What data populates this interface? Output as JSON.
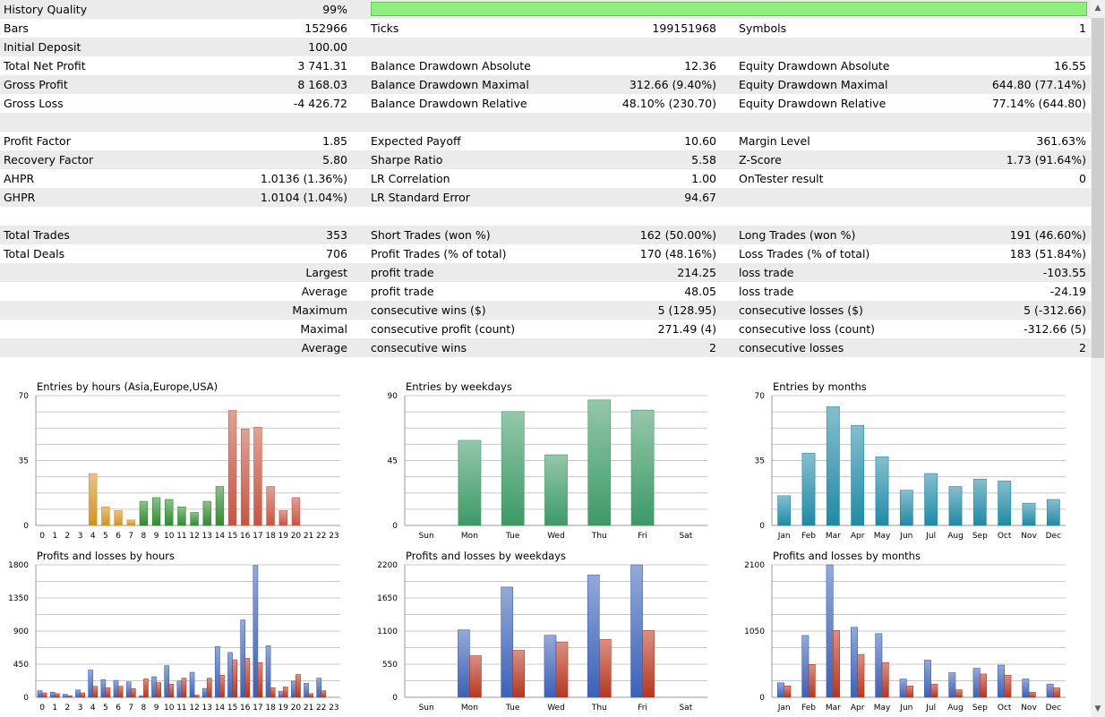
{
  "report": {
    "rows": [
      {
        "c1": "History Quality",
        "v1": "99%",
        "quality_bar": 0.99
      },
      {
        "c1": "Bars",
        "v1": "152966",
        "c2": "Ticks",
        "v2": "199151968",
        "c3": "Symbols",
        "v3": "1"
      },
      {
        "c1": "Initial Deposit",
        "v1": "100.00"
      },
      {
        "c1": "Total Net Profit",
        "v1": "3 741.31",
        "c2": "Balance Drawdown Absolute",
        "v2": "12.36",
        "c3": "Equity Drawdown Absolute",
        "v3": "16.55"
      },
      {
        "c1": "Gross Profit",
        "v1": "8 168.03",
        "c2": "Balance Drawdown Maximal",
        "v2": "312.66 (9.40%)",
        "c3": "Equity Drawdown Maximal",
        "v3": "644.80 (77.14%)"
      },
      {
        "c1": "Gross Loss",
        "v1": "-4 426.72",
        "c2": "Balance Drawdown Relative",
        "v2": "48.10% (230.70)",
        "c3": "Equity Drawdown Relative",
        "v3": "77.14% (644.80)"
      },
      {},
      {
        "c1": "Profit Factor",
        "v1": "1.85",
        "c2": "Expected Payoff",
        "v2": "10.60",
        "c3": "Margin Level",
        "v3": "361.63%"
      },
      {
        "c1": "Recovery Factor",
        "v1": "5.80",
        "c2": "Sharpe Ratio",
        "v2": "5.58",
        "c3": "Z-Score",
        "v3": "1.73 (91.64%)"
      },
      {
        "c1": "AHPR",
        "v1": "1.0136 (1.36%)",
        "c2": "LR Correlation",
        "v2": "1.00",
        "c3": "OnTester result",
        "v3": "0"
      },
      {
        "c1": "GHPR",
        "v1": "1.0104 (1.04%)",
        "c2": "LR Standard Error",
        "v2": "94.67"
      },
      {},
      {
        "c1": "Total Trades",
        "v1": "353",
        "c2": "Short Trades (won %)",
        "v2": "162 (50.00%)",
        "c3": "Long Trades (won %)",
        "v3": "191 (46.60%)"
      },
      {
        "c1": "Total Deals",
        "v1": "706",
        "c2": "Profit Trades (% of total)",
        "v2": "170 (48.16%)",
        "c3": "Loss Trades (% of total)",
        "v3": "183 (51.84%)"
      },
      {
        "lab1": "Largest",
        "c2": "profit trade",
        "v2": "214.25",
        "c3": "loss trade",
        "v3": "-103.55"
      },
      {
        "lab1": "Average",
        "c2": "profit trade",
        "v2": "48.05",
        "c3": "loss trade",
        "v3": "-24.19"
      },
      {
        "lab1": "Maximum",
        "c2": "consecutive wins ($)",
        "v2": "5 (128.95)",
        "c3": "consecutive losses ($)",
        "v3": "5 (-312.66)"
      },
      {
        "lab1": "Maximal",
        "c2": "consecutive profit (count)",
        "v2": "271.49 (4)",
        "c3": "consecutive loss (count)",
        "v3": "-312.66 (5)"
      },
      {
        "lab1": "Average",
        "c2": "consecutive wins",
        "v2": "2",
        "c3": "consecutive losses",
        "v3": "2"
      },
      {}
    ]
  },
  "colors": {
    "row_alt": "#ebebeb",
    "quality_bar": "#8ef07c",
    "asia": "#d4921e",
    "europe": "#2f8a2f",
    "usa": "#c95440",
    "weekdays": "#3c9a66",
    "months": "#1f8aa6",
    "profit": "#3a62b8",
    "loss": "#b8361e",
    "grid": "#c8c8c8"
  },
  "scrollbar": {
    "up_icon": "chevron-up-icon",
    "down_icon": "chevron-down-icon"
  },
  "chart_data": [
    {
      "type": "bar",
      "title": "Entries by hours (Asia,Europe,USA)",
      "categories": [
        "0",
        "1",
        "2",
        "3",
        "4",
        "5",
        "6",
        "7",
        "8",
        "9",
        "10",
        "11",
        "12",
        "13",
        "14",
        "15",
        "16",
        "17",
        "18",
        "19",
        "20",
        "21",
        "22",
        "23"
      ],
      "values": [
        0,
        0,
        0,
        0,
        28,
        10,
        8,
        3,
        13,
        15,
        14,
        10,
        7,
        13,
        21,
        62,
        52,
        53,
        21,
        8,
        15,
        0,
        0,
        0
      ],
      "color_groups": [
        {
          "from": 0,
          "to": 7,
          "color": "asia"
        },
        {
          "from": 8,
          "to": 14,
          "color": "europe"
        },
        {
          "from": 15,
          "to": 23,
          "color": "usa"
        }
      ],
      "yticks": [
        0,
        35,
        70
      ],
      "ylim": [
        0,
        70
      ]
    },
    {
      "type": "bar",
      "title": "Entries by weekdays",
      "categories": [
        "Sun",
        "Mon",
        "Tue",
        "Wed",
        "Thu",
        "Fri",
        "Sat"
      ],
      "values": [
        0,
        59,
        79,
        49,
        87,
        80,
        0
      ],
      "color": "weekdays",
      "yticks": [
        0,
        45,
        90
      ],
      "ylim": [
        0,
        90
      ]
    },
    {
      "type": "bar",
      "title": "Entries by months",
      "categories": [
        "Jan",
        "Feb",
        "Mar",
        "Apr",
        "May",
        "Jun",
        "Jul",
        "Aug",
        "Sep",
        "Oct",
        "Nov",
        "Dec"
      ],
      "values": [
        16,
        39,
        64,
        54,
        37,
        19,
        28,
        21,
        25,
        24,
        12,
        14
      ],
      "color": "months",
      "yticks": [
        0,
        35,
        70
      ],
      "ylim": [
        0,
        70
      ]
    },
    {
      "type": "bar",
      "title": "Profits and losses by hours",
      "categories": [
        "0",
        "1",
        "2",
        "3",
        "4",
        "5",
        "6",
        "7",
        "8",
        "9",
        "10",
        "11",
        "12",
        "13",
        "14",
        "15",
        "16",
        "17",
        "18",
        "19",
        "20",
        "21",
        "22",
        "23"
      ],
      "series": [
        {
          "values": [
            90,
            70,
            40,
            100,
            370,
            240,
            230,
            210,
            20,
            280,
            430,
            220,
            340,
            120,
            690,
            610,
            1050,
            1790,
            700,
            80,
            220,
            190,
            260,
            0
          ]
        },
        {
          "values": [
            60,
            50,
            20,
            60,
            150,
            130,
            150,
            120,
            250,
            200,
            180,
            260,
            30,
            260,
            300,
            510,
            530,
            470,
            130,
            140,
            310,
            50,
            90,
            0
          ]
        }
      ],
      "colors": [
        "profit",
        "loss"
      ],
      "yticks": [
        0,
        450,
        900,
        1350,
        1800
      ],
      "ylim": [
        0,
        1800
      ]
    },
    {
      "type": "bar",
      "title": "Profits and losses by weekdays",
      "categories": [
        "Sun",
        "Mon",
        "Tue",
        "Wed",
        "Thu",
        "Fri",
        "Sat"
      ],
      "series": [
        {
          "values": [
            0,
            1120,
            1830,
            1030,
            2030,
            2200,
            0
          ]
        },
        {
          "values": [
            0,
            690,
            780,
            920,
            960,
            1110,
            0
          ]
        }
      ],
      "colors": [
        "profit",
        "loss"
      ],
      "yticks": [
        0,
        550,
        1100,
        1650,
        2200
      ],
      "ylim": [
        0,
        2200
      ]
    },
    {
      "type": "bar",
      "title": "Profits and losses by months",
      "categories": [
        "Jan",
        "Feb",
        "Mar",
        "Apr",
        "May",
        "Jun",
        "Jul",
        "Aug",
        "Sep",
        "Oct",
        "Nov",
        "Dec"
      ],
      "series": [
        {
          "values": [
            230,
            980,
            2100,
            1110,
            1010,
            290,
            590,
            390,
            460,
            510,
            290,
            210
          ]
        },
        {
          "values": [
            180,
            520,
            1060,
            680,
            550,
            180,
            210,
            120,
            370,
            350,
            80,
            150
          ]
        }
      ],
      "colors": [
        "profit",
        "loss"
      ],
      "yticks": [
        0,
        1050,
        2100
      ],
      "ylim": [
        0,
        2100
      ]
    }
  ]
}
